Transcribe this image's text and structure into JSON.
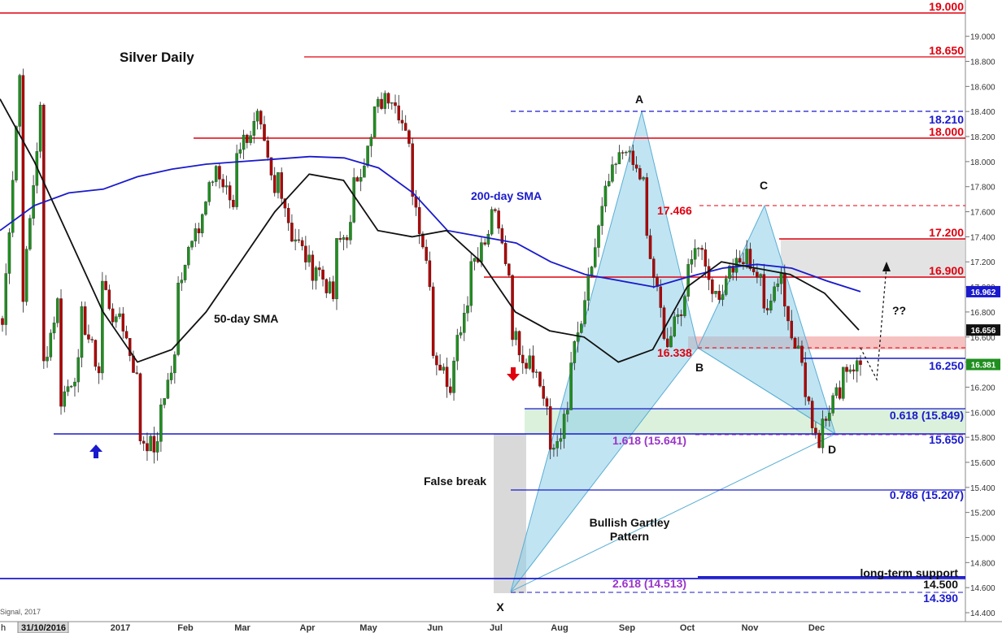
{
  "chart_data": {
    "type": "candlestick",
    "title": "Silver Daily",
    "ylim": [
      14.3,
      19.05
    ],
    "y_ticks": [
      "14.400",
      "14.600",
      "14.800",
      "15.000",
      "15.200",
      "15.400",
      "15.600",
      "15.800",
      "16.000",
      "16.200",
      "16.400",
      "16.600",
      "16.800",
      "17.000",
      "17.200",
      "17.400",
      "17.600",
      "17.800",
      "18.000",
      "18.200",
      "18.400",
      "18.600",
      "18.800",
      "19.000"
    ],
    "x_ticks": [
      "2017",
      "Feb",
      "Mar",
      "Apr",
      "May",
      "Jun",
      "Jul",
      "Aug",
      "Sep",
      "Oct",
      "Nov",
      "Dec"
    ],
    "date_label": "31/10/2016",
    "source_fragment": "Signal, 2017",
    "price_tags": [
      {
        "text": "16.962",
        "value": 16.962,
        "bg": "#1a1acc"
      },
      {
        "text": "16.656",
        "value": 16.656,
        "bg": "#111111"
      },
      {
        "text": "16.381",
        "value": 16.381,
        "bg": "#1f8f1f"
      }
    ],
    "price_path": [
      [
        16.7,
        18.95
      ],
      [
        16.85,
        18.5
      ],
      [
        16.3,
        17.0
      ],
      [
        16.1,
        16.4
      ],
      [
        16.8,
        16.3
      ],
      [
        17.1,
        16.6
      ],
      [
        16.8,
        16.2
      ],
      [
        15.8,
        15.7
      ],
      [
        16.0,
        16.5
      ],
      [
        17.0,
        17.6
      ],
      [
        17.4,
        18.0
      ],
      [
        17.9,
        17.6
      ],
      [
        18.1,
        18.3
      ],
      [
        18.4,
        17.7
      ],
      [
        18.0,
        17.3
      ],
      [
        17.4,
        17.1
      ],
      [
        17.2,
        16.9
      ],
      [
        17.3,
        17.5
      ],
      [
        17.8,
        18.2
      ],
      [
        18.4,
        18.55
      ],
      [
        18.6,
        18.0
      ],
      [
        17.8,
        17.0
      ],
      [
        16.5,
        16.2
      ],
      [
        16.4,
        17.0
      ],
      [
        17.2,
        17.4
      ],
      [
        17.7,
        17.1
      ],
      [
        16.7,
        16.35
      ],
      [
        16.5,
        16.0
      ],
      [
        15.6,
        16.0
      ],
      [
        16.3,
        16.9
      ],
      [
        17.0,
        17.8
      ],
      [
        17.8,
        18.15
      ],
      [
        18.05,
        17.8
      ],
      [
        17.4,
        16.6
      ],
      [
        16.5,
        16.9
      ],
      [
        17.2,
        17.4
      ],
      [
        17.1,
        16.9
      ],
      [
        17.1,
        17.2
      ],
      [
        17.3,
        17.0
      ],
      [
        16.8,
        17.15
      ],
      [
        16.9,
        16.4
      ],
      [
        16.2,
        15.7
      ],
      [
        15.95,
        16.2
      ],
      [
        16.35,
        16.38
      ]
    ],
    "series": [
      {
        "name": "200-day SMA",
        "values": [
          17.45,
          17.65,
          17.75,
          17.78,
          17.88,
          17.94,
          17.98,
          18.0,
          18.02,
          18.04,
          18.03,
          17.95,
          17.75,
          17.45,
          17.4,
          17.35,
          17.2,
          17.1,
          17.05,
          17.0,
          17.08,
          17.15,
          17.18,
          17.15,
          17.05,
          16.962
        ]
      },
      {
        "name": "50-day SMA",
        "values": [
          18.5,
          18.0,
          17.4,
          16.8,
          16.4,
          16.5,
          16.8,
          17.2,
          17.6,
          17.9,
          17.85,
          17.45,
          17.4,
          17.45,
          17.2,
          16.8,
          16.65,
          16.6,
          16.4,
          16.5,
          17.0,
          17.2,
          17.15,
          17.1,
          16.95,
          16.656
        ]
      }
    ],
    "horizontal_levels": [
      {
        "label": "19.000",
        "value": 19.0,
        "color": "#e0000f"
      },
      {
        "label": "18.650",
        "value": 18.65,
        "color": "#e0000f"
      },
      {
        "label": "18.210",
        "value": 18.21,
        "color": "#1a1acc",
        "style": "dashed"
      },
      {
        "label": "18.000",
        "value": 18.0,
        "color": "#e0000f"
      },
      {
        "label": "17.466",
        "value": 17.466,
        "color": "#e0000f",
        "style": "dashed"
      },
      {
        "label": "17.200",
        "value": 17.2,
        "color": "#e0000f"
      },
      {
        "label": "16.900",
        "value": 16.9,
        "color": "#e0000f"
      },
      {
        "label": "16.338",
        "value": 16.338,
        "color": "#e0000f"
      },
      {
        "label": "16.250",
        "value": 16.25,
        "color": "#1a1acc"
      },
      {
        "label": "0.618 (15.849)",
        "value": 15.849,
        "color": "#1a1acc"
      },
      {
        "label": "15.650",
        "value": 15.65,
        "color": "#1a1acc"
      },
      {
        "label": "1.618 (15.641)",
        "value": 15.641,
        "color": "#9a34c8"
      },
      {
        "label": "0.786 (15.207)",
        "value": 15.207,
        "color": "#1a1acc"
      },
      {
        "label": "14.500",
        "value": 14.5,
        "color": "#1a1acc"
      },
      {
        "label": "2.618 (14.513)",
        "value": 14.513,
        "color": "#9a34c8"
      },
      {
        "label": "14.390",
        "value": 14.39,
        "color": "#1a1acc",
        "style": "dashed"
      }
    ],
    "pattern_points": [
      {
        "name": "X",
        "value": 14.39
      },
      {
        "name": "A",
        "value": 18.21
      },
      {
        "name": "B",
        "value": 16.338
      },
      {
        "name": "C",
        "value": 17.466
      },
      {
        "name": "D",
        "value": 15.641
      }
    ],
    "annotations": [
      "200-day SMA",
      "50-day SMA",
      "False break",
      "Bullish Gartley Pattern",
      "long-term support",
      "??"
    ]
  },
  "labels": {
    "title": "Silver Daily",
    "sma200": "200-day SMA",
    "sma50": "50-day SMA",
    "false_break": "False break",
    "gartley_line1": "Bullish Gartley",
    "gartley_line2": "Pattern",
    "long_term_support": "long-term support",
    "question": "??",
    "pt_A": "A",
    "pt_B": "B",
    "pt_C": "C",
    "pt_D": "D",
    "pt_X": "X",
    "partial_edge": "h"
  }
}
